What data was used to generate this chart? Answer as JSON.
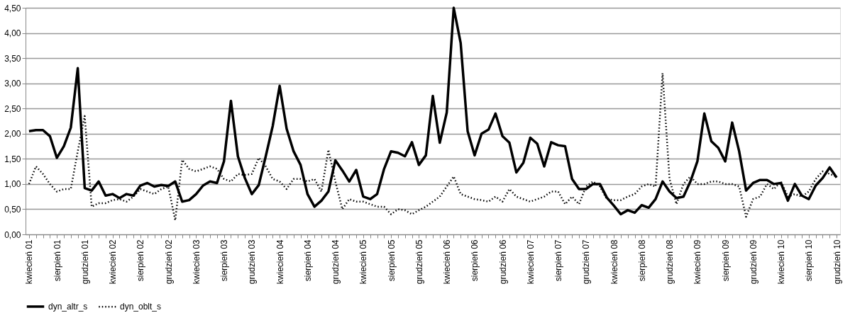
{
  "chart_data": {
    "type": "line",
    "categories": [
      "kwiecień 01",
      null,
      null,
      null,
      "sierpień 01",
      null,
      null,
      null,
      "grudzień 01",
      null,
      null,
      null,
      "kwiecień 02",
      null,
      null,
      null,
      "sierpień 02",
      null,
      null,
      null,
      "grudzień 02",
      null,
      null,
      null,
      "kwiecień 03",
      null,
      null,
      null,
      "sierpień 03",
      null,
      null,
      null,
      "grudzień 03",
      null,
      null,
      null,
      "kwiecień 04",
      null,
      null,
      null,
      "sierpień 04",
      null,
      null,
      null,
      "grudzień 04",
      null,
      null,
      null,
      "kwiecień 05",
      null,
      null,
      null,
      "sierpień 05",
      null,
      null,
      null,
      "grudzień 05",
      null,
      null,
      null,
      "kwiecień 06",
      null,
      null,
      null,
      "sierpień 06",
      null,
      null,
      null,
      "grudzień 06",
      null,
      null,
      null,
      "kwiecień 07",
      null,
      null,
      null,
      "sierpień 07",
      null,
      null,
      null,
      "grudzień 07",
      null,
      null,
      null,
      "kwiecień 08",
      null,
      null,
      null,
      "sierpień 08",
      null,
      null,
      null,
      "grudzień 08",
      null,
      null,
      null,
      "kwiecień 09",
      null,
      null,
      null,
      "sierpień 09",
      null,
      null,
      null,
      "grudzień 09",
      null,
      null,
      null,
      "kwiecień 10",
      null,
      null,
      null,
      "sierpień 10",
      null,
      null,
      null,
      "grudzień 10"
    ],
    "series": [
      {
        "name": "dyn_altr_s",
        "color": "#000000",
        "line_style": "solid",
        "values": [
          2.05,
          2.07,
          2.07,
          1.95,
          1.52,
          1.75,
          2.12,
          3.3,
          0.92,
          0.87,
          1.05,
          0.77,
          0.8,
          0.72,
          0.8,
          0.77,
          0.97,
          1.02,
          0.95,
          0.98,
          0.96,
          1.05,
          0.65,
          0.68,
          0.8,
          0.97,
          1.05,
          1.02,
          1.45,
          2.65,
          1.55,
          1.12,
          0.8,
          0.98,
          1.55,
          2.15,
          2.95,
          2.1,
          1.65,
          1.38,
          0.8,
          0.55,
          0.67,
          0.85,
          1.47,
          1.27,
          1.05,
          1.28,
          0.75,
          0.7,
          0.8,
          1.3,
          1.65,
          1.62,
          1.55,
          1.83,
          1.38,
          1.57,
          2.75,
          1.82,
          2.42,
          4.5,
          3.8,
          2.05,
          1.57,
          2.0,
          2.08,
          2.4,
          1.95,
          1.82,
          1.23,
          1.42,
          1.92,
          1.8,
          1.35,
          1.83,
          1.77,
          1.75,
          1.1,
          0.9,
          0.9,
          1.0,
          1.0,
          0.73,
          0.57,
          0.4,
          0.48,
          0.43,
          0.58,
          0.53,
          0.7,
          1.05,
          0.85,
          0.72,
          0.75,
          1.05,
          1.45,
          2.4,
          1.85,
          1.72,
          1.45,
          2.22,
          1.65,
          0.87,
          1.02,
          1.08,
          1.08,
          1.0,
          1.02,
          0.67,
          1.0,
          0.77,
          0.7,
          0.97,
          1.12,
          1.33,
          1.13
        ]
      },
      {
        "name": "dyn_oblt_s",
        "color": "#000000",
        "line_style": "dotted",
        "values": [
          1.0,
          1.35,
          1.2,
          1.0,
          0.85,
          0.9,
          0.9,
          1.65,
          2.35,
          0.55,
          0.62,
          0.62,
          0.68,
          0.7,
          0.65,
          0.75,
          0.9,
          0.85,
          0.8,
          0.9,
          0.95,
          0.28,
          1.48,
          1.3,
          1.25,
          1.3,
          1.35,
          1.3,
          1.1,
          1.05,
          1.2,
          1.18,
          1.2,
          1.52,
          1.35,
          1.1,
          1.05,
          0.9,
          1.1,
          1.1,
          1.05,
          1.1,
          0.85,
          1.68,
          1.05,
          0.5,
          0.7,
          0.65,
          0.65,
          0.6,
          0.55,
          0.55,
          0.4,
          0.5,
          0.48,
          0.4,
          0.48,
          0.55,
          0.65,
          0.75,
          0.95,
          1.15,
          0.8,
          0.75,
          0.7,
          0.68,
          0.65,
          0.75,
          0.65,
          0.9,
          0.75,
          0.7,
          0.65,
          0.7,
          0.75,
          0.85,
          0.85,
          0.6,
          0.75,
          0.6,
          0.95,
          1.05,
          0.95,
          0.7,
          0.68,
          0.68,
          0.75,
          0.8,
          0.95,
          1.0,
          0.95,
          3.2,
          1.1,
          0.6,
          1.0,
          1.15,
          1.0,
          1.0,
          1.05,
          1.05,
          1.0,
          1.0,
          0.95,
          0.35,
          0.7,
          0.75,
          1.0,
          0.9,
          1.05,
          0.75,
          0.8,
          0.75,
          0.85,
          1.1,
          1.25,
          1.2,
          1.15
        ]
      }
    ],
    "ylim": [
      0,
      4.5
    ],
    "yticks": [
      {
        "value": 0,
        "label": "0,00"
      },
      {
        "value": 0.5,
        "label": "0,50"
      },
      {
        "value": 1,
        "label": "1,00"
      },
      {
        "value": 1.5,
        "label": "1,50"
      },
      {
        "value": 2,
        "label": "2,00"
      },
      {
        "value": 2.5,
        "label": "2,50"
      },
      {
        "value": 3,
        "label": "3,00"
      },
      {
        "value": 3.5,
        "label": "3,50"
      },
      {
        "value": 4,
        "label": "4,00"
      },
      {
        "value": 4.5,
        "label": "4,50"
      }
    ],
    "grid": "y",
    "legend": "bottom"
  }
}
